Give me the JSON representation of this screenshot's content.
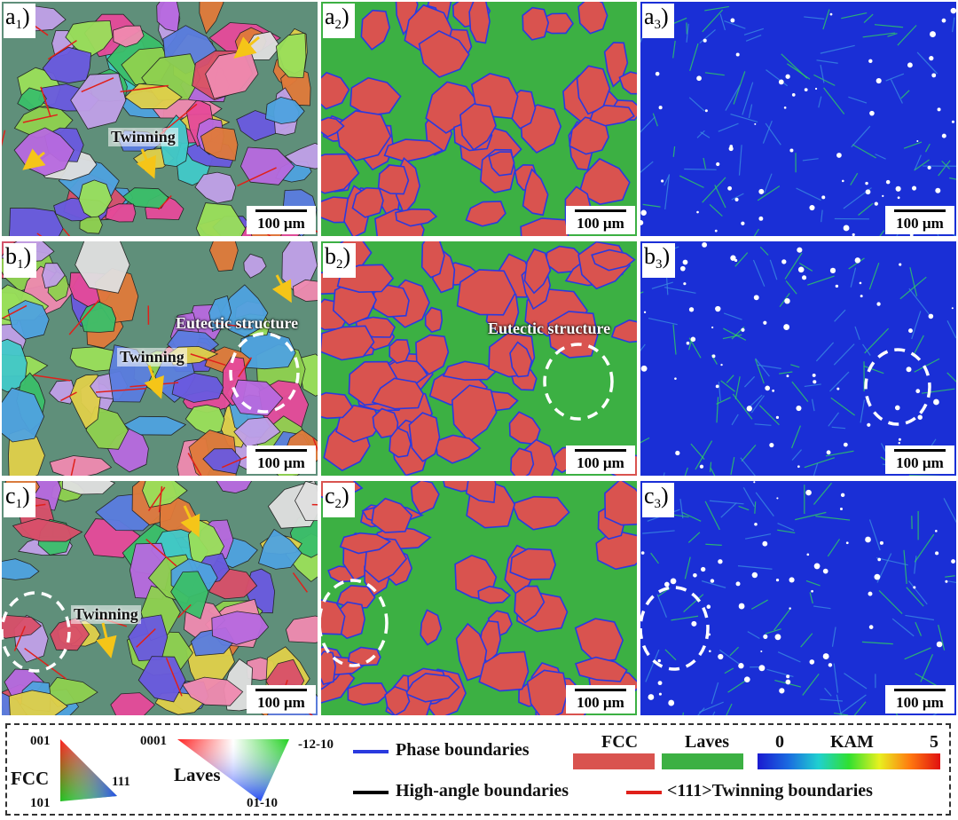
{
  "panels": [
    {
      "label": "a",
      "sub": "1",
      "type": "ipf",
      "seed": 11,
      "scale": "100 µm",
      "annotation": "Twinning"
    },
    {
      "label": "a",
      "sub": "2",
      "type": "phase",
      "seed": 12,
      "scale": "100 µm"
    },
    {
      "label": "a",
      "sub": "3",
      "type": "kam",
      "seed": 13,
      "scale": "100 µm"
    },
    {
      "label": "b",
      "sub": "1",
      "type": "ipf",
      "seed": 21,
      "scale": "100 µm",
      "annotation": "Twinning",
      "annotation2": "Eutectic structure"
    },
    {
      "label": "b",
      "sub": "2",
      "type": "phase",
      "seed": 22,
      "scale": "100 µm",
      "annotation2": "Eutectic structure"
    },
    {
      "label": "b",
      "sub": "3",
      "type": "kam",
      "seed": 23,
      "scale": "100 µm"
    },
    {
      "label": "c",
      "sub": "1",
      "type": "ipf",
      "seed": 31,
      "scale": "100 µm",
      "annotation": "Twinning"
    },
    {
      "label": "c",
      "sub": "2",
      "type": "phase",
      "seed": 32,
      "scale": "100 µm"
    },
    {
      "label": "c",
      "sub": "3",
      "type": "kam",
      "seed": 33,
      "scale": "100 µm"
    }
  ],
  "legend": {
    "fcc_triangle": {
      "name": "FCC",
      "corner_top": "001",
      "corner_bottom": "101",
      "corner_right": "111"
    },
    "laves_triangle": {
      "name": "Laves",
      "corner_left": "0001",
      "corner_right": "-12-10",
      "corner_bottom": "01-10"
    },
    "phase_boundaries": "Phase boundaries",
    "high_angle_boundaries": "High-angle boundaries",
    "twinning_boundaries": "<111>Twinning boundaries",
    "fcc_label": "FCC",
    "laves_label": "Laves",
    "kam_label": "KAM",
    "kam_min": "0",
    "kam_max": "5"
  },
  "colors": {
    "fcc_phase": "#d9534f",
    "laves_phase": "#3cb043",
    "phase_boundary": "#2a3adf",
    "high_angle": "#000000",
    "twin": "#e0201a",
    "kam_base": "#1a2fd6"
  }
}
